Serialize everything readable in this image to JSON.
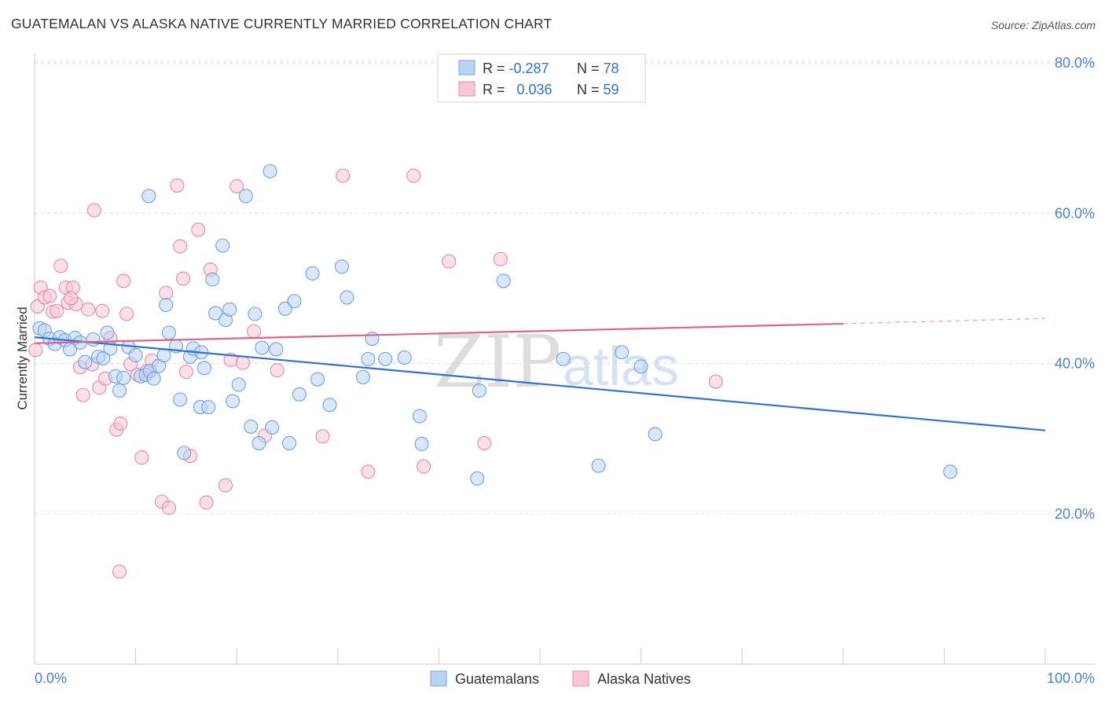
{
  "title": "GUATEMALAN VS ALASKA NATIVE CURRENTLY MARRIED CORRELATION CHART",
  "source": "Source: ZipAtlas.com",
  "watermark": {
    "zip": "ZIP",
    "atlas": "atlas"
  },
  "legend": {
    "rows": [
      {
        "r_label": "R = ",
        "r_value": "-0.287",
        "n_label": "N = ",
        "n_value": "78",
        "color": "#9ec3ef"
      },
      {
        "r_label": "R = ",
        "r_value": "0.036",
        "n_label": "N = ",
        "n_value": "59",
        "color": "#f4b4c8"
      }
    ]
  },
  "chart_data": {
    "type": "scatter",
    "title": "GUATEMALAN VS ALASKA NATIVE CURRENTLY MARRIED CORRELATION CHART",
    "xlabel": "",
    "ylabel": "Currently Married",
    "xlim": [
      0,
      100
    ],
    "ylim": [
      0,
      85
    ],
    "x_tick_labels": [
      "0.0%",
      "100.0%"
    ],
    "y_ticks": [
      20,
      40,
      60,
      80
    ],
    "y_tick_labels": [
      "20.0%",
      "40.0%",
      "60.0%",
      "80.0%"
    ],
    "grid": true,
    "legend_position": "top-center",
    "series": [
      {
        "name": "Guatemalans",
        "color": "#6fa3e0",
        "fill": "#b9d3f3",
        "trend_color": "#2e72d2",
        "trend": {
          "x": [
            0,
            100
          ],
          "y": [
            43.5,
            31.1
          ]
        },
        "points": [
          [
            0.5,
            44.7
          ],
          [
            1.0,
            44.4
          ],
          [
            1.5,
            43.3
          ],
          [
            2.0,
            42.6
          ],
          [
            2.5,
            43.5
          ],
          [
            3.0,
            43.1
          ],
          [
            3.5,
            41.9
          ],
          [
            4.0,
            43.4
          ],
          [
            4.5,
            42.8
          ],
          [
            5.0,
            40.2
          ],
          [
            5.8,
            43.2
          ],
          [
            6.3,
            40.9
          ],
          [
            6.8,
            40.7
          ],
          [
            7.2,
            44.1
          ],
          [
            7.5,
            42.0
          ],
          [
            8.0,
            38.3
          ],
          [
            8.4,
            36.4
          ],
          [
            8.8,
            38.1
          ],
          [
            9.3,
            42.2
          ],
          [
            10.0,
            41.1
          ],
          [
            10.5,
            38.3
          ],
          [
            11.0,
            38.5
          ],
          [
            11.4,
            39.0
          ],
          [
            11.8,
            38.0
          ],
          [
            12.3,
            39.7
          ],
          [
            12.8,
            41.1
          ],
          [
            13.0,
            47.8
          ],
          [
            13.3,
            44.1
          ],
          [
            14.0,
            42.3
          ],
          [
            14.4,
            35.2
          ],
          [
            14.8,
            28.1
          ],
          [
            15.4,
            40.9
          ],
          [
            15.7,
            42.0
          ],
          [
            16.4,
            34.2
          ],
          [
            16.8,
            39.4
          ],
          [
            17.2,
            34.2
          ],
          [
            17.6,
            51.2
          ],
          [
            17.9,
            46.7
          ],
          [
            18.6,
            55.7
          ],
          [
            18.9,
            45.8
          ],
          [
            19.3,
            47.2
          ],
          [
            19.6,
            35.0
          ],
          [
            20.2,
            37.2
          ],
          [
            21.4,
            31.6
          ],
          [
            21.8,
            46.6
          ],
          [
            22.2,
            29.4
          ],
          [
            22.5,
            42.1
          ],
          [
            23.3,
            65.6
          ],
          [
            23.5,
            31.5
          ],
          [
            23.9,
            41.9
          ],
          [
            24.8,
            47.3
          ],
          [
            25.2,
            29.4
          ],
          [
            25.7,
            48.3
          ],
          [
            26.2,
            35.9
          ],
          [
            27.5,
            52.0
          ],
          [
            28.0,
            37.9
          ],
          [
            29.2,
            34.5
          ],
          [
            30.4,
            52.9
          ],
          [
            30.9,
            48.8
          ],
          [
            32.5,
            38.2
          ],
          [
            33.0,
            40.6
          ],
          [
            33.4,
            43.3
          ],
          [
            34.7,
            40.6
          ],
          [
            36.6,
            40.8
          ],
          [
            38.1,
            33.0
          ],
          [
            38.3,
            29.3
          ],
          [
            43.8,
            24.7
          ],
          [
            44.0,
            36.4
          ],
          [
            46.4,
            51.0
          ],
          [
            52.3,
            40.6
          ],
          [
            55.8,
            26.4
          ],
          [
            58.1,
            41.5
          ],
          [
            60.0,
            39.6
          ],
          [
            61.4,
            30.6
          ],
          [
            90.6,
            25.6
          ],
          [
            16.5,
            41.5
          ],
          [
            11.3,
            62.3
          ],
          [
            20.9,
            62.3
          ]
        ]
      },
      {
        "name": "Alaska Natives",
        "color": "#e98aab",
        "fill": "#f8c7d6",
        "trend_color": "#e0628c",
        "trend": {
          "x": [
            0,
            80
          ],
          "y": [
            42.7,
            45.3
          ]
        },
        "trend_dashed": {
          "x": [
            80,
            100
          ],
          "y": [
            45.3,
            46.0
          ]
        },
        "points": [
          [
            0.1,
            41.8
          ],
          [
            0.3,
            47.6
          ],
          [
            0.6,
            50.1
          ],
          [
            1.0,
            48.8
          ],
          [
            1.5,
            49.0
          ],
          [
            1.8,
            46.9
          ],
          [
            2.2,
            47.0
          ],
          [
            2.6,
            53.0
          ],
          [
            3.1,
            50.1
          ],
          [
            3.3,
            48.1
          ],
          [
            3.8,
            50.1
          ],
          [
            4.1,
            47.9
          ],
          [
            4.5,
            39.5
          ],
          [
            4.8,
            35.8
          ],
          [
            5.3,
            47.2
          ],
          [
            5.7,
            39.9
          ],
          [
            5.9,
            60.4
          ],
          [
            6.4,
            36.8
          ],
          [
            6.7,
            47.0
          ],
          [
            7.0,
            38.0
          ],
          [
            7.5,
            43.4
          ],
          [
            8.1,
            31.2
          ],
          [
            8.5,
            32.0
          ],
          [
            8.8,
            51.0
          ],
          [
            9.1,
            46.6
          ],
          [
            9.5,
            39.9
          ],
          [
            10.2,
            38.5
          ],
          [
            10.6,
            27.5
          ],
          [
            11.1,
            39.0
          ],
          [
            11.6,
            40.4
          ],
          [
            12.6,
            21.6
          ],
          [
            13.0,
            49.4
          ],
          [
            13.3,
            20.8
          ],
          [
            14.1,
            63.7
          ],
          [
            14.4,
            55.6
          ],
          [
            14.7,
            51.3
          ],
          [
            15.0,
            38.9
          ],
          [
            15.4,
            27.7
          ],
          [
            16.2,
            57.8
          ],
          [
            17.0,
            21.5
          ],
          [
            17.4,
            52.5
          ],
          [
            18.9,
            23.8
          ],
          [
            19.4,
            40.5
          ],
          [
            20.0,
            63.6
          ],
          [
            20.6,
            40.1
          ],
          [
            21.7,
            44.3
          ],
          [
            22.8,
            30.4
          ],
          [
            24.0,
            39.1
          ],
          [
            28.5,
            30.3
          ],
          [
            30.5,
            65.0
          ],
          [
            33.0,
            25.6
          ],
          [
            37.5,
            65.0
          ],
          [
            38.5,
            26.3
          ],
          [
            41.0,
            53.6
          ],
          [
            44.5,
            29.4
          ],
          [
            46.1,
            53.9
          ],
          [
            67.4,
            37.6
          ],
          [
            8.4,
            12.3
          ],
          [
            3.6,
            48.7
          ]
        ]
      }
    ]
  },
  "bottom_legend": [
    "Guatemalans",
    "Alaska Natives"
  ]
}
